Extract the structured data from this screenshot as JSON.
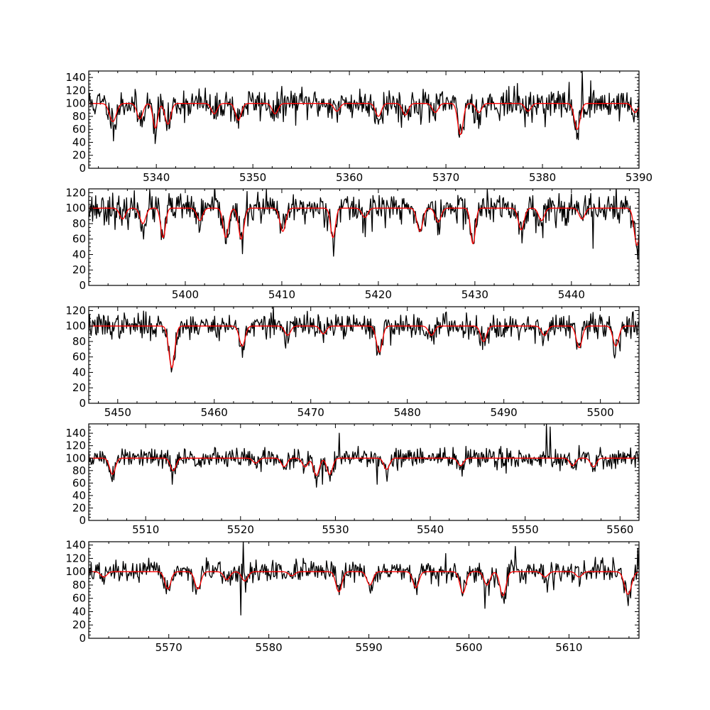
{
  "figure": {
    "colors": {
      "observed": "#000000",
      "model": "#ff0000",
      "frame": "#000000"
    }
  },
  "chart_data": [
    {
      "type": "line",
      "xlim": [
        5333,
        5390
      ],
      "ylim": [
        0,
        150
      ],
      "xticks": [
        5340,
        5350,
        5360,
        5370,
        5380,
        5390
      ],
      "yticks": [
        0,
        20,
        40,
        60,
        80,
        100,
        120,
        140
      ],
      "grid": false,
      "continuum": 100,
      "noise": 12,
      "seed": 11,
      "lines": [
        [
          5335.5,
          72,
          0.35
        ],
        [
          5338.3,
          76,
          0.3
        ],
        [
          5339.9,
          62,
          0.25
        ],
        [
          5341.2,
          68,
          0.3
        ],
        [
          5346.0,
          84,
          0.3
        ],
        [
          5348.5,
          74,
          0.3
        ],
        [
          5352.3,
          84,
          0.3
        ],
        [
          5358.7,
          88,
          0.3
        ],
        [
          5363.0,
          80,
          0.3
        ],
        [
          5365.8,
          82,
          0.3
        ],
        [
          5368.9,
          86,
          0.3
        ],
        [
          5371.5,
          52,
          0.28
        ],
        [
          5373.4,
          86,
          0.3
        ],
        [
          5378.5,
          88,
          0.3
        ],
        [
          5383.6,
          60,
          0.3
        ],
        [
          5389.6,
          86,
          0.3
        ]
      ],
      "spikes": [
        [
          5384.1,
          150
        ]
      ],
      "series": [
        {
          "role": "observed",
          "values": [
            [
              5333,
              95
            ],
            [
              5339.9,
              60
            ],
            [
              5371.5,
              46
            ],
            [
              5383.6,
              55
            ],
            [
              5384.1,
              150
            ],
            [
              5390,
              95
            ]
          ]
        },
        {
          "role": "model",
          "values": [
            [
              5333,
              100
            ],
            [
              5339.9,
              64
            ],
            [
              5371.5,
              52
            ],
            [
              5383.6,
              62
            ],
            [
              5390,
              90
            ]
          ]
        }
      ]
    },
    {
      "type": "line",
      "xlim": [
        5390,
        5447
      ],
      "ylim": [
        0,
        125
      ],
      "xticks": [
        5400,
        5410,
        5420,
        5430,
        5440
      ],
      "yticks": [
        0,
        20,
        40,
        60,
        80,
        100,
        120
      ],
      "grid": false,
      "continuum": 100,
      "noise": 10,
      "seed": 23,
      "lines": [
        [
          5393.5,
          86,
          0.3
        ],
        [
          5395.6,
          80,
          0.3
        ],
        [
          5397.7,
          62,
          0.25
        ],
        [
          5401.5,
          84,
          0.3
        ],
        [
          5404.2,
          62,
          0.28
        ],
        [
          5405.8,
          60,
          0.28
        ],
        [
          5410.1,
          70,
          0.3
        ],
        [
          5415.3,
          62,
          0.25
        ],
        [
          5418.6,
          88,
          0.3
        ],
        [
          5424.3,
          70,
          0.3
        ],
        [
          5426.2,
          82,
          0.3
        ],
        [
          5429.8,
          54,
          0.25
        ],
        [
          5434.8,
          72,
          0.3
        ],
        [
          5436.9,
          84,
          0.3
        ],
        [
          5441.1,
          86,
          0.3
        ],
        [
          5446.8,
          52,
          0.3
        ]
      ],
      "spikes": [
        [
          5442.2,
          48
        ],
        [
          5434.9,
          55
        ],
        [
          5447.0,
          46
        ]
      ],
      "series": [
        {
          "role": "observed",
          "values": [
            [
              5390,
              96
            ],
            [
              5429.8,
              50
            ],
            [
              5442.2,
              48
            ],
            [
              5447,
              55
            ]
          ]
        },
        {
          "role": "model",
          "values": [
            [
              5390,
              100
            ],
            [
              5429.8,
              54
            ],
            [
              5446.8,
              52
            ]
          ]
        }
      ]
    },
    {
      "type": "line",
      "xlim": [
        5447,
        5504
      ],
      "ylim": [
        0,
        125
      ],
      "xticks": [
        5450,
        5460,
        5470,
        5480,
        5490,
        5500
      ],
      "yticks": [
        0,
        20,
        40,
        60,
        80,
        100,
        120
      ],
      "grid": false,
      "continuum": 100,
      "noise": 8,
      "seed": 37,
      "lines": [
        [
          5455.6,
          46,
          0.3
        ],
        [
          5462.9,
          74,
          0.3
        ],
        [
          5467.6,
          88,
          0.3
        ],
        [
          5471.3,
          90,
          0.3
        ],
        [
          5477.1,
          66,
          0.3
        ],
        [
          5482.5,
          88,
          0.3
        ],
        [
          5487.9,
          80,
          0.3
        ],
        [
          5494.2,
          88,
          0.3
        ],
        [
          5497.8,
          72,
          0.3
        ],
        [
          5501.6,
          74,
          0.3
        ]
      ],
      "spikes": [
        [
          5466.1,
          125
        ]
      ],
      "series": [
        {
          "role": "observed",
          "values": [
            [
              5447,
              100
            ],
            [
              5455.6,
              45
            ],
            [
              5466.1,
              125
            ],
            [
              5504,
              100
            ]
          ]
        },
        {
          "role": "model",
          "values": [
            [
              5447,
              100
            ],
            [
              5455.6,
              46
            ],
            [
              5477.1,
              66
            ],
            [
              5504,
              100
            ]
          ]
        }
      ]
    },
    {
      "type": "line",
      "xlim": [
        5504,
        5562
      ],
      "ylim": [
        0,
        155
      ],
      "xticks": [
        5510,
        5520,
        5530,
        5540,
        5550,
        5560
      ],
      "yticks": [
        0,
        20,
        40,
        60,
        80,
        100,
        120,
        140
      ],
      "grid": false,
      "continuum": 100,
      "noise": 8,
      "seed": 51,
      "lines": [
        [
          5506.5,
          74,
          0.3
        ],
        [
          5512.9,
          80,
          0.3
        ],
        [
          5521.6,
          92,
          0.3
        ],
        [
          5524.6,
          86,
          0.3
        ],
        [
          5526.8,
          86,
          0.3
        ],
        [
          5528.0,
          72,
          0.3
        ],
        [
          5529.4,
          74,
          0.3
        ],
        [
          5535.4,
          82,
          0.3
        ],
        [
          5543.2,
          88,
          0.3
        ],
        [
          5555.0,
          88,
          0.3
        ],
        [
          5557.2,
          86,
          0.3
        ]
      ],
      "spikes": [
        [
          5530.4,
          140
        ],
        [
          5552.2,
          155
        ],
        [
          5552.6,
          150
        ],
        [
          5512.8,
          58
        ],
        [
          5528.6,
          58
        ],
        [
          5534.4,
          58
        ]
      ],
      "series": [
        {
          "role": "observed",
          "values": [
            [
              5504,
              100
            ],
            [
              5512.8,
              58
            ],
            [
              5552.2,
              155
            ],
            [
              5562,
              100
            ]
          ]
        },
        {
          "role": "model",
          "values": [
            [
              5504,
              100
            ],
            [
              5528.0,
              72
            ],
            [
              5562,
              100
            ]
          ]
        }
      ]
    },
    {
      "type": "line",
      "xlim": [
        5562,
        5617
      ],
      "ylim": [
        0,
        145
      ],
      "xticks": [
        5570,
        5580,
        5590,
        5600,
        5610
      ],
      "yticks": [
        0,
        20,
        40,
        60,
        80,
        100,
        120,
        140
      ],
      "grid": false,
      "continuum": 100,
      "noise": 8,
      "seed": 67,
      "lines": [
        [
          5563.5,
          92,
          0.3
        ],
        [
          5569.9,
          74,
          0.3
        ],
        [
          5572.9,
          74,
          0.3
        ],
        [
          5575.8,
          88,
          0.3
        ],
        [
          5577.6,
          86,
          0.3
        ],
        [
          5582.3,
          94,
          0.3
        ],
        [
          5587.0,
          70,
          0.3
        ],
        [
          5590.1,
          80,
          0.3
        ],
        [
          5594.7,
          76,
          0.3
        ],
        [
          5599.4,
          68,
          0.3
        ],
        [
          5601.8,
          80,
          0.3
        ],
        [
          5603.4,
          64,
          0.3
        ],
        [
          5607.6,
          92,
          0.3
        ],
        [
          5611.0,
          92,
          0.3
        ],
        [
          5615.9,
          66,
          0.35
        ]
      ],
      "spikes": [
        [
          5577.2,
          35
        ],
        [
          5577.4,
          145
        ],
        [
          5601.6,
          45
        ],
        [
          5604.6,
          138
        ],
        [
          5616.9,
          135
        ]
      ],
      "series": [
        {
          "role": "observed",
          "values": [
            [
              5562,
              100
            ],
            [
              5577.2,
              35
            ],
            [
              5577.4,
              145
            ],
            [
              5617,
              130
            ]
          ]
        },
        {
          "role": "model",
          "values": [
            [
              5562,
              100
            ],
            [
              5603.4,
              64
            ],
            [
              5615.9,
              66
            ],
            [
              5617,
              100
            ]
          ]
        }
      ]
    }
  ]
}
